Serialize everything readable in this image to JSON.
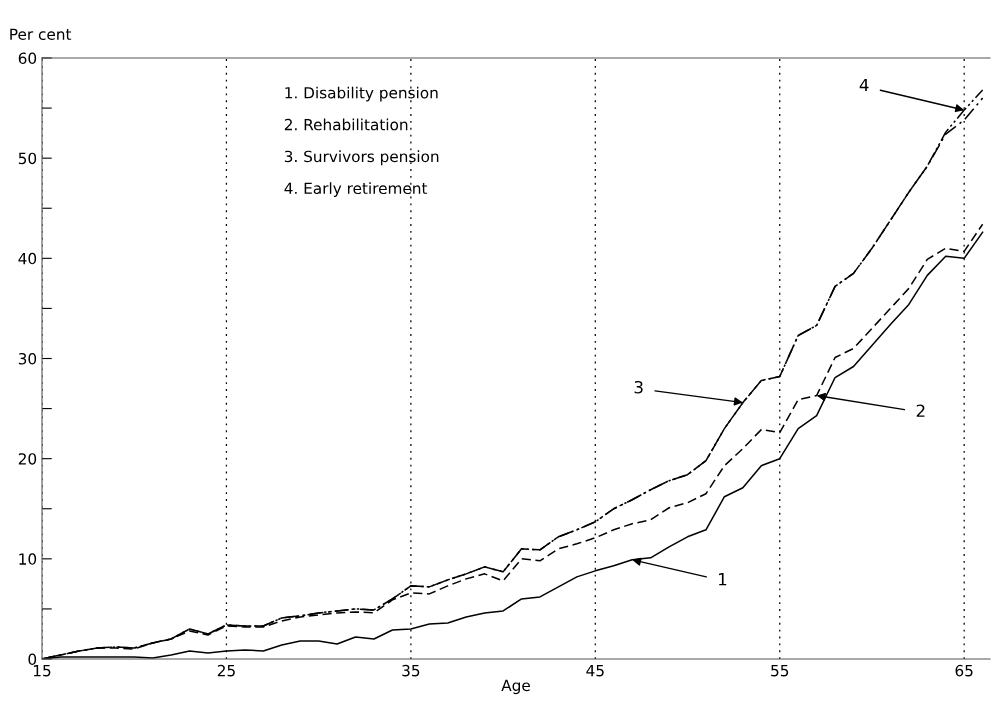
{
  "chart_data": {
    "type": "line",
    "ylabel": "Per cent",
    "xlabel": "Age",
    "x": [
      15,
      16,
      17,
      18,
      19,
      20,
      21,
      22,
      23,
      24,
      25,
      26,
      27,
      28,
      29,
      30,
      31,
      32,
      33,
      34,
      35,
      36,
      37,
      38,
      39,
      40,
      41,
      42,
      43,
      44,
      45,
      46,
      47,
      48,
      49,
      50,
      51,
      52,
      53,
      54,
      55,
      56,
      57,
      58,
      59,
      60,
      61,
      62,
      63,
      64,
      65,
      66
    ],
    "series": [
      {
        "color": "#000000",
        "line_style": "solid",
        "values": [
          0,
          0.2,
          0.2,
          0.2,
          0.2,
          0.2,
          0.1,
          0.4,
          0.8,
          0.6,
          0.8,
          0.9,
          0.8,
          1.4,
          1.8,
          1.8,
          1.5,
          2.2,
          2.0,
          2.9,
          3.0,
          3.5,
          3.6,
          4.2,
          4.6,
          4.8,
          6.0,
          6.2,
          7.2,
          8.2,
          8.8,
          9.3,
          9.9,
          10.1,
          11.2,
          12.2,
          12.9,
          16.2,
          17.1,
          19.3,
          20.0,
          23.0,
          24.3,
          28.1,
          29.2,
          31.3,
          33.4,
          35.4,
          38.3,
          40.2,
          40.0,
          42.6
        ]
      },
      {
        "color": "#000000",
        "line_style": "dashed",
        "values": [
          0,
          0.4,
          0.8,
          1.1,
          1.1,
          1.0,
          1.6,
          2.0,
          2.8,
          2.4,
          3.3,
          3.2,
          3.2,
          3.8,
          4.2,
          4.4,
          4.6,
          4.7,
          4.6,
          5.9,
          6.6,
          6.5,
          7.3,
          8.0,
          8.5,
          7.8,
          10.0,
          9.8,
          11.0,
          11.5,
          12.1,
          12.9,
          13.5,
          13.9,
          15.1,
          15.6,
          16.5,
          19.3,
          21.0,
          22.9,
          22.6,
          25.9,
          26.3,
          30.1,
          31.0,
          33.0,
          35.0,
          37.0,
          39.9,
          41.0,
          40.7,
          43.4
        ]
      },
      {
        "color": "#000000",
        "line_style": "dashdot",
        "values": [
          0,
          0.4,
          0.8,
          1.1,
          1.2,
          1.1,
          1.6,
          2.0,
          3.0,
          2.5,
          3.4,
          3.3,
          3.3,
          4.1,
          4.3,
          4.6,
          4.8,
          5.0,
          4.9,
          6.0,
          7.3,
          7.2,
          7.9,
          8.5,
          9.2,
          8.7,
          11.0,
          10.9,
          12.2,
          12.9,
          13.7,
          15.0,
          15.9,
          16.9,
          17.8,
          18.4,
          19.8,
          23.0,
          25.6,
          27.8,
          28.2,
          32.3,
          33.3,
          37.2,
          38.5,
          41.0,
          43.8,
          46.6,
          49.2,
          52.4,
          53.8,
          56.0
        ]
      },
      {
        "color": "#000000",
        "line_style": "dashdotdot",
        "values": [
          0,
          0.4,
          0.8,
          1.1,
          1.2,
          1.1,
          1.6,
          2.0,
          3.0,
          2.5,
          3.4,
          3.3,
          3.3,
          4.1,
          4.3,
          4.6,
          4.8,
          5.0,
          4.9,
          6.0,
          7.3,
          7.2,
          7.9,
          8.5,
          9.2,
          8.7,
          11.0,
          10.9,
          12.2,
          12.9,
          13.7,
          15.0,
          15.9,
          16.9,
          17.8,
          18.4,
          19.8,
          23.0,
          25.6,
          27.8,
          28.2,
          32.3,
          33.3,
          37.2,
          38.5,
          41.0,
          43.8,
          46.6,
          49.2,
          52.6,
          54.8,
          56.8
        ]
      }
    ],
    "xlim": [
      15,
      66.4
    ],
    "xticks": [
      15,
      25,
      35,
      45,
      55,
      65
    ],
    "ylim": [
      0,
      60
    ],
    "yticks": [
      0,
      {
        "value": 5,
        "label": null
      },
      10,
      {
        "value": 15,
        "label": null
      },
      20,
      {
        "value": 25,
        "label": null
      },
      30,
      {
        "value": 35,
        "label": null
      },
      40,
      {
        "value": 45,
        "label": null
      },
      50,
      {
        "value": 55,
        "label": null
      },
      60
    ],
    "grid": "x",
    "legend": false,
    "annotations": [
      "1. Disability pension",
      "2. Rehabilitation",
      "3. Survivors pension",
      "4. Early retirement",
      {
        "text": "1",
        "x": 47,
        "y": 9.9
      },
      {
        "text": "2",
        "x": 57,
        "y": 26.3
      },
      {
        "text": "3",
        "x": 53,
        "y": 25.6
      },
      {
        "text": "4",
        "x": 65,
        "y": 54.8
      }
    ]
  }
}
